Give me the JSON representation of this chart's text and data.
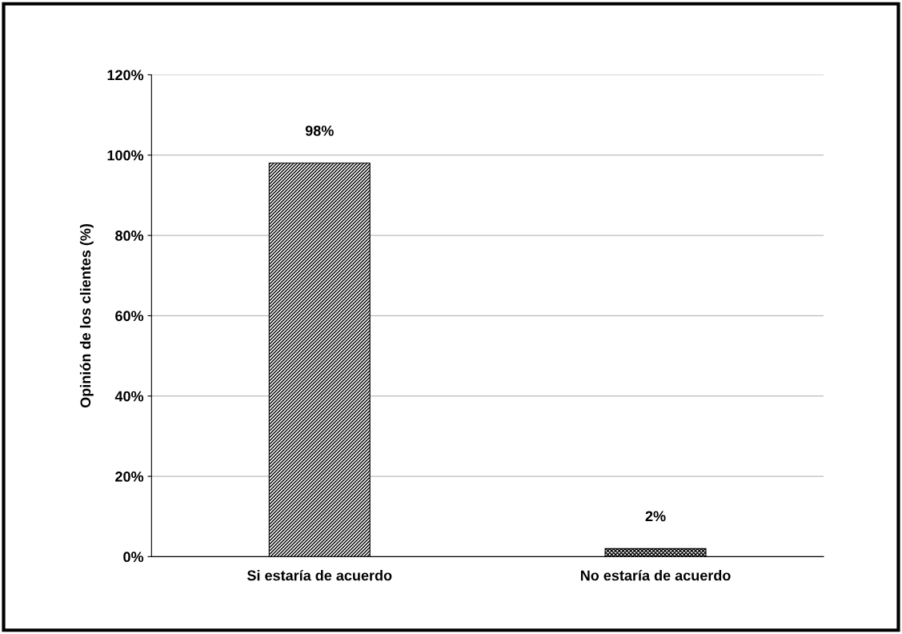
{
  "chart_data": {
    "type": "bar",
    "ylabel": "Opinión de los clientes (%)",
    "categories": [
      "Si estaría de acuerdo",
      "No estaría de acuerdo"
    ],
    "values": [
      98,
      2
    ],
    "colors": [
      "#000000",
      "#000000"
    ],
    "value_labels": [
      "98%",
      "2%"
    ],
    "ylim": [
      0,
      120
    ],
    "yticks": [
      {
        "value": 0,
        "label": "0%"
      },
      {
        "value": 20,
        "label": "20%"
      },
      {
        "value": 40,
        "label": "40%"
      },
      {
        "value": 60,
        "label": "60%"
      },
      {
        "value": 80,
        "label": "80%"
      },
      {
        "value": 100,
        "label": "100%"
      },
      {
        "value": 120,
        "label": "120%"
      }
    ],
    "grid": "y"
  }
}
